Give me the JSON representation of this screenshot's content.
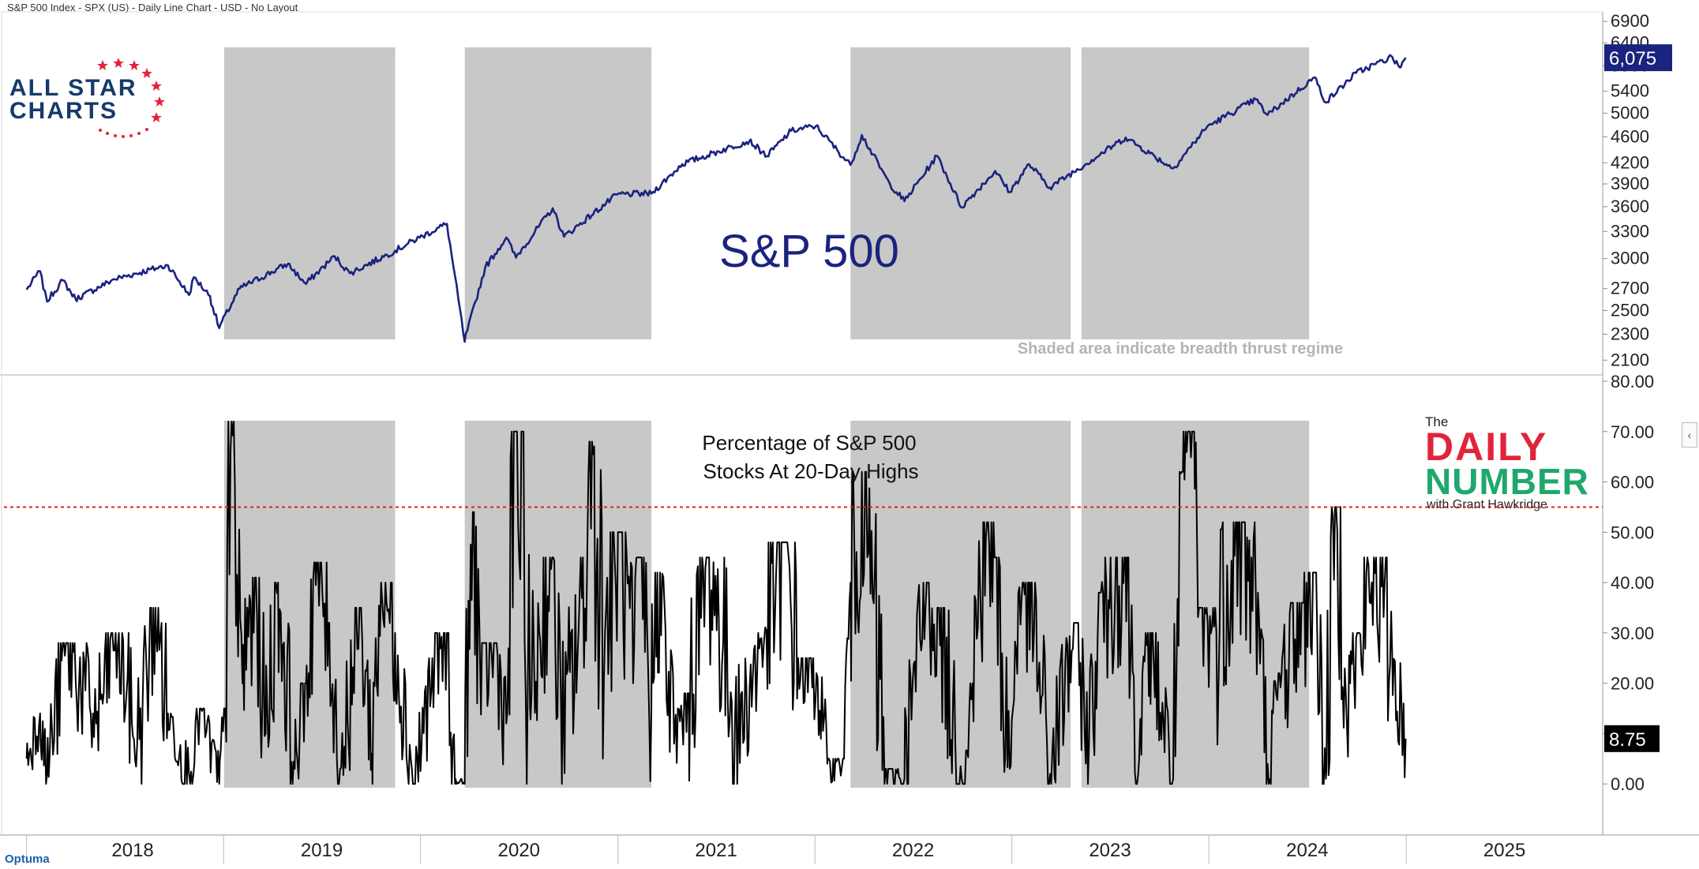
{
  "header": {
    "title": "S&P 500 Index - SPX (US) - Daily Line Chart - USD - No Layout"
  },
  "vendor": {
    "label": "Optuma"
  },
  "logos": {
    "allstar": {
      "line1": "ALL STAR",
      "line2": "CHARTS"
    },
    "daily_number": {
      "the": "The",
      "daily": "DAILY",
      "number": "NUMBER",
      "byline": "with Grant Hawkridge"
    }
  },
  "colors": {
    "price_line": "#1a237e",
    "breadth_line": "#000000",
    "shade": "#c8c8c8",
    "threshold": "#e02020",
    "price_label_bg": "#1a237e",
    "breadth_label_bg": "#000000",
    "title_text": "#1a237e",
    "note_text": "#b4b4b4"
  },
  "chart_data": [
    {
      "type": "line",
      "name": "S&P 500 panel",
      "title": "S&P 500",
      "annotation": "Shaded area indicate breadth thrust regime",
      "y_scale": "log",
      "ylim": [
        2050,
        7000
      ],
      "yticks": [
        2100,
        2300,
        2500,
        2700,
        3000,
        3300,
        3600,
        3900,
        4200,
        4600,
        5000,
        5400,
        5900,
        6400,
        6900
      ],
      "ytick_labels": [
        "2100",
        "2300",
        "2500",
        "2700",
        "3000",
        "3300",
        "3600",
        "3900",
        "4200",
        "4600",
        "5000",
        "5400",
        "5900",
        "6400",
        "6900"
      ],
      "last_value_label": "6,075",
      "series": [
        {
          "x": [
            "2018-01-01",
            "2018-01-26",
            "2018-02-08",
            "2018-03-09",
            "2018-04-02",
            "2018-06-12",
            "2018-09-20",
            "2018-10-29",
            "2018-11-07",
            "2018-12-07",
            "2018-12-24",
            "2019-01-31",
            "2019-04-30",
            "2019-06-03",
            "2019-07-26",
            "2019-08-23",
            "2019-10-31",
            "2019-12-31",
            "2020-02-19",
            "2020-03-23",
            "2020-04-30",
            "2020-06-08",
            "2020-06-26",
            "2020-09-02",
            "2020-09-23",
            "2020-12-31",
            "2021-03-04",
            "2021-04-30",
            "2021-09-02",
            "2021-10-04",
            "2021-11-18",
            "2022-01-03",
            "2022-03-08",
            "2022-03-29",
            "2022-05-20",
            "2022-06-16",
            "2022-08-16",
            "2022-09-30",
            "2022-12-01",
            "2022-12-28",
            "2023-02-02",
            "2023-03-13",
            "2023-07-31",
            "2023-10-27",
            "2023-12-29",
            "2024-03-28",
            "2024-04-19",
            "2024-07-16",
            "2024-08-05",
            "2024-09-30",
            "2024-12-06",
            "2024-12-20",
            "2024-12-31"
          ],
          "y": [
            2690,
            2870,
            2580,
            2780,
            2600,
            2790,
            2930,
            2640,
            2810,
            2630,
            2350,
            2700,
            2945,
            2745,
            3025,
            2850,
            3040,
            3230,
            3390,
            2240,
            2910,
            3230,
            3010,
            3580,
            3240,
            3760,
            3770,
            4180,
            4540,
            4300,
            4700,
            4780,
            4170,
            4630,
            3900,
            3670,
            4300,
            3590,
            4080,
            3790,
            4180,
            3850,
            4590,
            4120,
            4770,
            5250,
            4970,
            5670,
            5190,
            5760,
            6090,
            5870,
            6075
          ]
        }
      ]
    },
    {
      "type": "line",
      "name": "Breadth panel",
      "title": "Percentage of S&P 500 Stocks At 20-Day Highs",
      "title_lines": [
        "Percentage of S&P 500",
        "Stocks At 20-Day Highs"
      ],
      "ylim": [
        -10,
        80
      ],
      "yticks": [
        0,
        10,
        20,
        30,
        40,
        50,
        60,
        70,
        80
      ],
      "ytick_labels": [
        "0.00",
        "10.00",
        "20.00",
        "30.00",
        "40.00",
        "50.00",
        "60.00",
        "70.00",
        "80.00"
      ],
      "threshold": 55,
      "last_value_label": "8.75",
      "series": [
        {
          "x": [
            "2018-01-01",
            "2018-01-26",
            "2018-02-08",
            "2018-03-15",
            "2018-05-10",
            "2018-06-15",
            "2018-07-25",
            "2018-08-28",
            "2018-09-20",
            "2018-10-29",
            "2018-11-20",
            "2018-12-24",
            "2019-01-04",
            "2019-01-10",
            "2019-02-05",
            "2019-02-28",
            "2019-03-20",
            "2019-04-12",
            "2019-05-13",
            "2019-06-03",
            "2019-06-20",
            "2019-07-15",
            "2019-08-05",
            "2019-09-12",
            "2019-10-03",
            "2019-10-20",
            "2019-11-15",
            "2019-12-20",
            "2020-01-27",
            "2020-02-19",
            "2020-03-05",
            "2020-03-16",
            "2020-03-23",
            "2020-04-09",
            "2020-04-21",
            "2020-05-18",
            "2020-06-08",
            "2020-06-26",
            "2020-07-22",
            "2020-08-28",
            "2020-09-23",
            "2020-11-05",
            "2020-11-09",
            "2020-12-08",
            "2021-01-07",
            "2021-01-29",
            "2021-02-12",
            "2021-03-04",
            "2021-03-15",
            "2021-04-15",
            "2021-05-12",
            "2021-06-18",
            "2021-08-12",
            "2021-09-30",
            "2021-11-04",
            "2021-12-01",
            "2022-01-04",
            "2022-01-24",
            "2022-02-24",
            "2022-03-08",
            "2022-03-29",
            "2022-05-12",
            "2022-06-16",
            "2022-07-29",
            "2022-08-16",
            "2022-09-30",
            "2022-10-20",
            "2022-11-11",
            "2022-11-30",
            "2022-12-28",
            "2023-01-13",
            "2023-02-02",
            "2023-03-13",
            "2023-04-28",
            "2023-05-24",
            "2023-06-15",
            "2023-07-31",
            "2023-08-25",
            "2023-09-14",
            "2023-10-27",
            "2023-11-14",
            "2023-12-05",
            "2023-12-14",
            "2024-01-15",
            "2024-02-22",
            "2024-03-28",
            "2024-04-19",
            "2024-05-15",
            "2024-06-25",
            "2024-07-16",
            "2024-08-05",
            "2024-08-22",
            "2024-09-19",
            "2024-10-14",
            "2024-11-06",
            "2024-12-06",
            "2024-12-31"
          ],
          "y": [
            5,
            14,
            2,
            28,
            12,
            30,
            8,
            35,
            14,
            2,
            15,
            0,
            15,
            72,
            20,
            41,
            10,
            40,
            3,
            20,
            44,
            32,
            3,
            35,
            6,
            40,
            30,
            0,
            25,
            30,
            0,
            1,
            0,
            54,
            20,
            28,
            12,
            70,
            15,
            45,
            8,
            45,
            68,
            30,
            50,
            20,
            45,
            15,
            42,
            8,
            18,
            45,
            10,
            30,
            48,
            25,
            22,
            4,
            5,
            40,
            62,
            3,
            1,
            40,
            35,
            1,
            20,
            52,
            45,
            3,
            38,
            40,
            2,
            32,
            8,
            38,
            45,
            5,
            30,
            1,
            62,
            70,
            35,
            30,
            52,
            38,
            4,
            22,
            36,
            42,
            1,
            55,
            20,
            30,
            45,
            25,
            9
          ]
        }
      ]
    },
    {
      "type": "axis",
      "name": "Time axis",
      "x_ticks": [
        "2018",
        "2019",
        "2020",
        "2021",
        "2022",
        "2023",
        "2024",
        "2025"
      ],
      "xlim": [
        "2017-11-20",
        "2025-12-31"
      ],
      "shaded_regimes": [
        {
          "start": "2019-01-02",
          "end": "2019-11-15"
        },
        {
          "start": "2020-03-23",
          "end": "2021-03-04"
        },
        {
          "start": "2022-03-08",
          "end": "2023-04-20"
        },
        {
          "start": "2023-05-10",
          "end": "2024-07-05"
        }
      ]
    }
  ]
}
